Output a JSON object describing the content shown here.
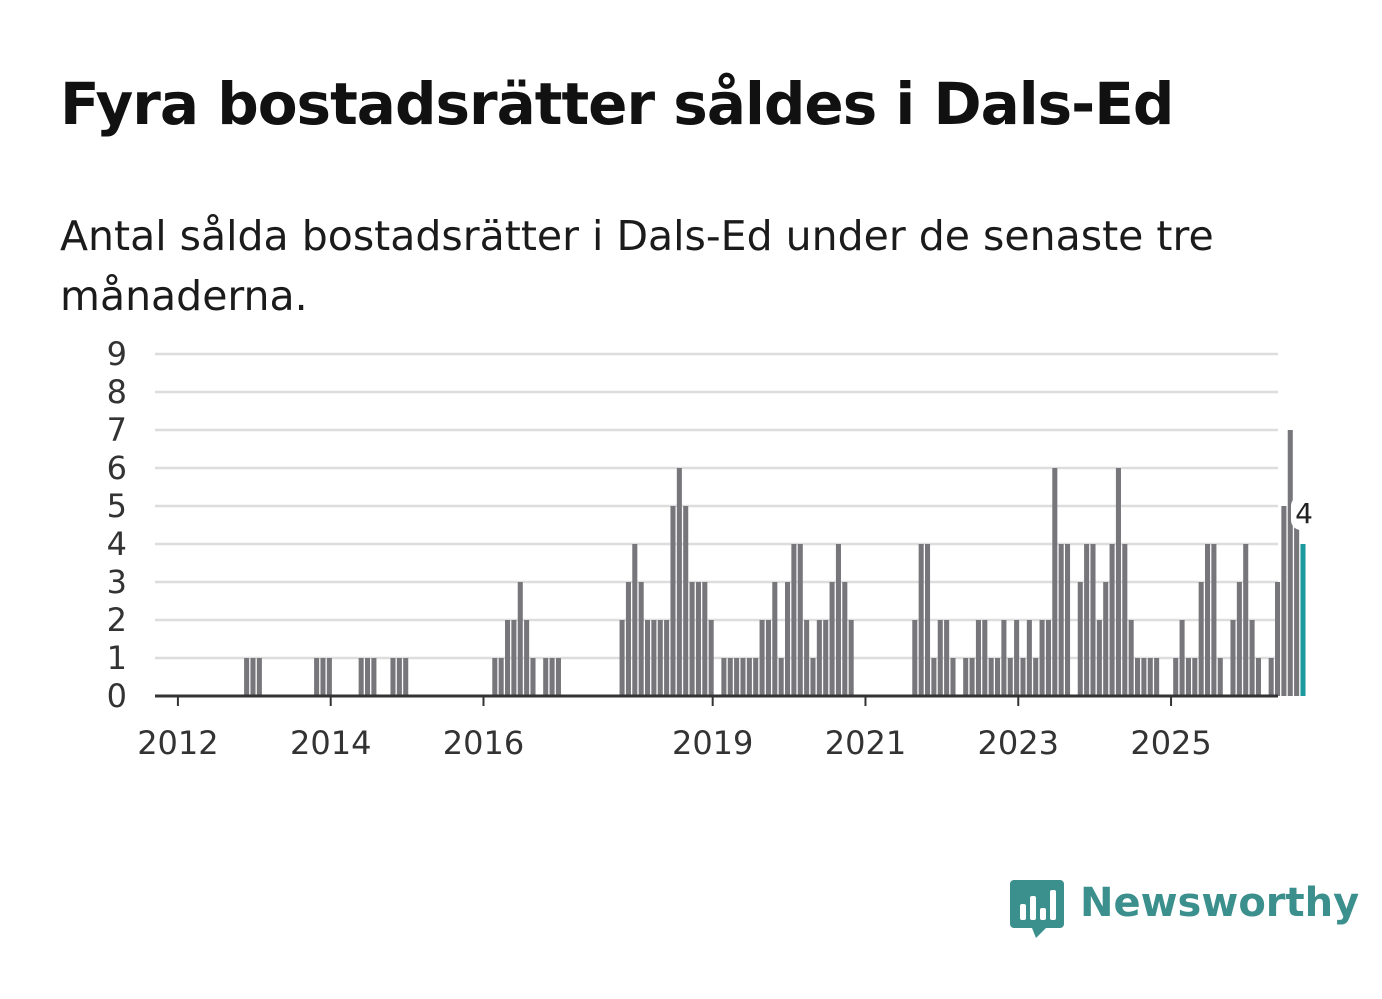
{
  "header": {
    "title": "Fyra bostadsrätter såldes i Dals-Ed",
    "subtitle": "Antal sålda bostadsrätter i Dals-Ed under de senaste tre månaderna."
  },
  "chart_data": {
    "type": "bar",
    "title": "Fyra bostadsrätter såldes i Dals-Ed",
    "subtitle": "Antal sålda bostadsrätter i Dals-Ed under de senaste tre månaderna.",
    "xlabel": "",
    "ylabel": "",
    "ylim": [
      0,
      9
    ],
    "yticks": [
      0,
      1,
      2,
      3,
      4,
      5,
      6,
      7,
      8,
      9
    ],
    "grid": true,
    "start_year": 2011.7,
    "end_year": 2026.4,
    "step_years": 0.0833,
    "x_tick_labels": [
      "2012",
      "2014",
      "2016",
      "2019",
      "2021",
      "2023",
      "2025"
    ],
    "values": [
      0,
      0,
      0,
      0,
      0,
      0,
      0,
      0,
      0,
      0,
      0,
      0,
      0,
      0,
      1,
      1,
      1,
      0,
      0,
      0,
      0,
      0,
      0,
      0,
      0,
      1,
      1,
      1,
      0,
      0,
      0,
      0,
      1,
      1,
      1,
      0,
      0,
      1,
      1,
      1,
      0,
      0,
      0,
      0,
      0,
      0,
      0,
      0,
      0,
      0,
      0,
      0,
      0,
      1,
      1,
      2,
      2,
      3,
      2,
      1,
      0,
      1,
      1,
      1,
      0,
      0,
      0,
      0,
      0,
      0,
      0,
      0,
      0,
      2,
      3,
      4,
      3,
      2,
      2,
      2,
      2,
      5,
      6,
      5,
      3,
      3,
      3,
      2,
      0,
      1,
      1,
      1,
      1,
      1,
      1,
      2,
      2,
      3,
      1,
      3,
      4,
      4,
      2,
      1,
      2,
      2,
      3,
      4,
      3,
      2,
      0,
      0,
      0,
      0,
      0,
      0,
      0,
      0,
      0,
      2,
      4,
      4,
      1,
      2,
      2,
      1,
      0,
      1,
      1,
      2,
      2,
      1,
      1,
      2,
      1,
      2,
      1,
      2,
      1,
      2,
      2,
      6,
      4,
      4,
      0,
      3,
      4,
      4,
      2,
      3,
      4,
      6,
      4,
      2,
      1,
      1,
      1,
      1,
      0,
      0,
      1,
      2,
      1,
      1,
      3,
      4,
      4,
      1,
      0,
      2,
      3,
      4,
      2,
      1,
      0,
      1,
      3,
      5,
      7,
      5,
      4
    ],
    "highlight": {
      "value": 4,
      "label": "4",
      "color": "#1b9aa0"
    },
    "bar_color": "#77767b"
  },
  "brand": {
    "name": "Newsworthy",
    "color": "#3b8f8c"
  }
}
